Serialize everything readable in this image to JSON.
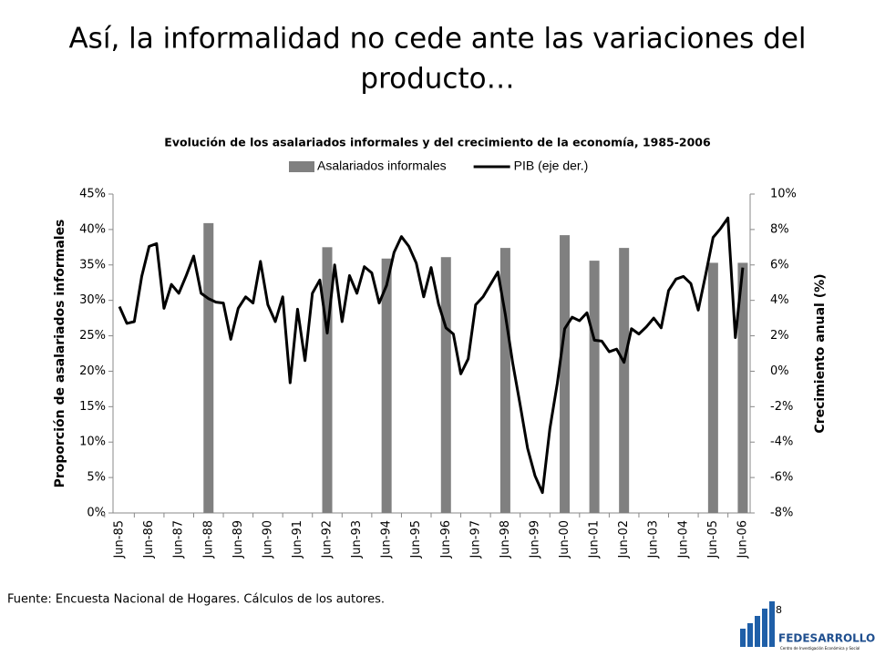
{
  "slide_title": [
    "Así, la informalidad no cede ante las variaciones del",
    "producto…"
  ],
  "chart_data": {
    "type": "combo",
    "title": "Evolución de los asalariados informales y del crecimiento de la economía, 1985-2006",
    "ylabel": "Proporción de asalariados informales",
    "y2label": "Crecimiento anual (%)",
    "categories": [
      "Jun-85",
      null,
      null,
      null,
      "Jun-86",
      null,
      null,
      null,
      "Jun-87",
      null,
      null,
      null,
      "Jun-88",
      null,
      null,
      null,
      "Jun-89",
      null,
      null,
      null,
      "Jun-90",
      null,
      null,
      null,
      "Jun-91",
      null,
      null,
      null,
      "Jun-92",
      null,
      null,
      null,
      "Jun-93",
      null,
      null,
      null,
      "Jun-94",
      null,
      null,
      null,
      "Jun-95",
      null,
      null,
      null,
      "Jun-96",
      null,
      null,
      null,
      "Jun-97",
      null,
      null,
      null,
      "Jun-98",
      null,
      null,
      null,
      "Jun-99",
      null,
      null,
      null,
      "Jun-00",
      null,
      null,
      null,
      "Jun-01",
      null,
      null,
      null,
      "Jun-02",
      null,
      null,
      null,
      "Jun-03",
      null,
      null,
      null,
      "Jun-04",
      null,
      null,
      null,
      "Jun-05",
      null,
      null,
      null,
      "Jun-06"
    ],
    "series": [
      {
        "name": "Asalariados informales",
        "type": "bar",
        "color": "#808080",
        "values": [
          null,
          null,
          null,
          null,
          null,
          null,
          null,
          null,
          null,
          null,
          null,
          null,
          40.9,
          null,
          null,
          null,
          null,
          null,
          null,
          null,
          null,
          null,
          null,
          null,
          null,
          null,
          null,
          null,
          37.5,
          null,
          null,
          null,
          null,
          null,
          null,
          null,
          35.9,
          null,
          null,
          null,
          null,
          null,
          null,
          null,
          36.1,
          null,
          null,
          null,
          null,
          null,
          null,
          null,
          37.4,
          null,
          null,
          null,
          null,
          null,
          null,
          null,
          39.2,
          null,
          null,
          null,
          35.6,
          null,
          null,
          null,
          37.4,
          null,
          null,
          null,
          null,
          null,
          null,
          null,
          null,
          null,
          null,
          null,
          35.3,
          null,
          null,
          null,
          35.3
        ]
      },
      {
        "name": "PIB (eje der.)",
        "type": "line",
        "axis": "y2",
        "color": "#000000",
        "values": [
          3.65,
          2.7,
          2.8,
          5.35,
          7.05,
          7.2,
          3.55,
          4.9,
          4.4,
          5.4,
          6.5,
          4.4,
          4.1,
          3.9,
          3.85,
          1.8,
          3.55,
          4.2,
          3.85,
          6.2,
          3.75,
          2.8,
          4.2,
          -0.65,
          3.5,
          0.6,
          4.4,
          5.15,
          2.15,
          6.0,
          2.8,
          5.4,
          4.4,
          5.9,
          5.55,
          3.85,
          4.85,
          6.7,
          7.6,
          7.05,
          6.1,
          4.2,
          5.85,
          3.8,
          2.45,
          2.1,
          -0.15,
          0.7,
          3.75,
          4.2,
          4.9,
          5.6,
          3.2,
          0.45,
          -1.9,
          -4.35,
          -5.9,
          -6.85,
          -3.25,
          -0.7,
          2.4,
          3.05,
          2.85,
          3.3,
          1.75,
          1.7,
          1.1,
          1.25,
          0.5,
          2.4,
          2.1,
          2.5,
          3.0,
          2.45,
          4.55,
          5.2,
          5.35,
          4.95,
          3.45,
          5.45,
          7.55,
          8.05,
          8.65,
          1.9,
          5.85
        ]
      }
    ],
    "ylim": [
      0,
      45
    ],
    "yticks": [
      {
        "value": 0,
        "label": "0%"
      },
      {
        "value": 5,
        "label": "5%"
      },
      {
        "value": 10,
        "label": "10%"
      },
      {
        "value": 15,
        "label": "15%"
      },
      {
        "value": 20,
        "label": "20%"
      },
      {
        "value": 25,
        "label": "25%"
      },
      {
        "value": 30,
        "label": "30%"
      },
      {
        "value": 35,
        "label": "35%"
      },
      {
        "value": 40,
        "label": "40%"
      },
      {
        "value": 45,
        "label": "45%"
      }
    ],
    "y2lim": [
      -8,
      10
    ],
    "y2ticks": [
      {
        "value": -8,
        "label": "-8%"
      },
      {
        "value": -6,
        "label": "-6%"
      },
      {
        "value": -4,
        "label": "-4%"
      },
      {
        "value": -2,
        "label": "-2%"
      },
      {
        "value": 0,
        "label": "0%"
      },
      {
        "value": 2,
        "label": "2%"
      },
      {
        "value": 4,
        "label": "4%"
      },
      {
        "value": 6,
        "label": "6%"
      },
      {
        "value": 8,
        "label": "8%"
      },
      {
        "value": 10,
        "label": "10%"
      }
    ],
    "grid": false,
    "legend": "top"
  },
  "footer": "Fuente: Encuesta Nacional de Hogares. Cálculos de los autores.",
  "page_number": "8",
  "logo": {
    "name": "FEDESARROLLO",
    "tagline": "Centro de Investigación Económica y Social"
  }
}
